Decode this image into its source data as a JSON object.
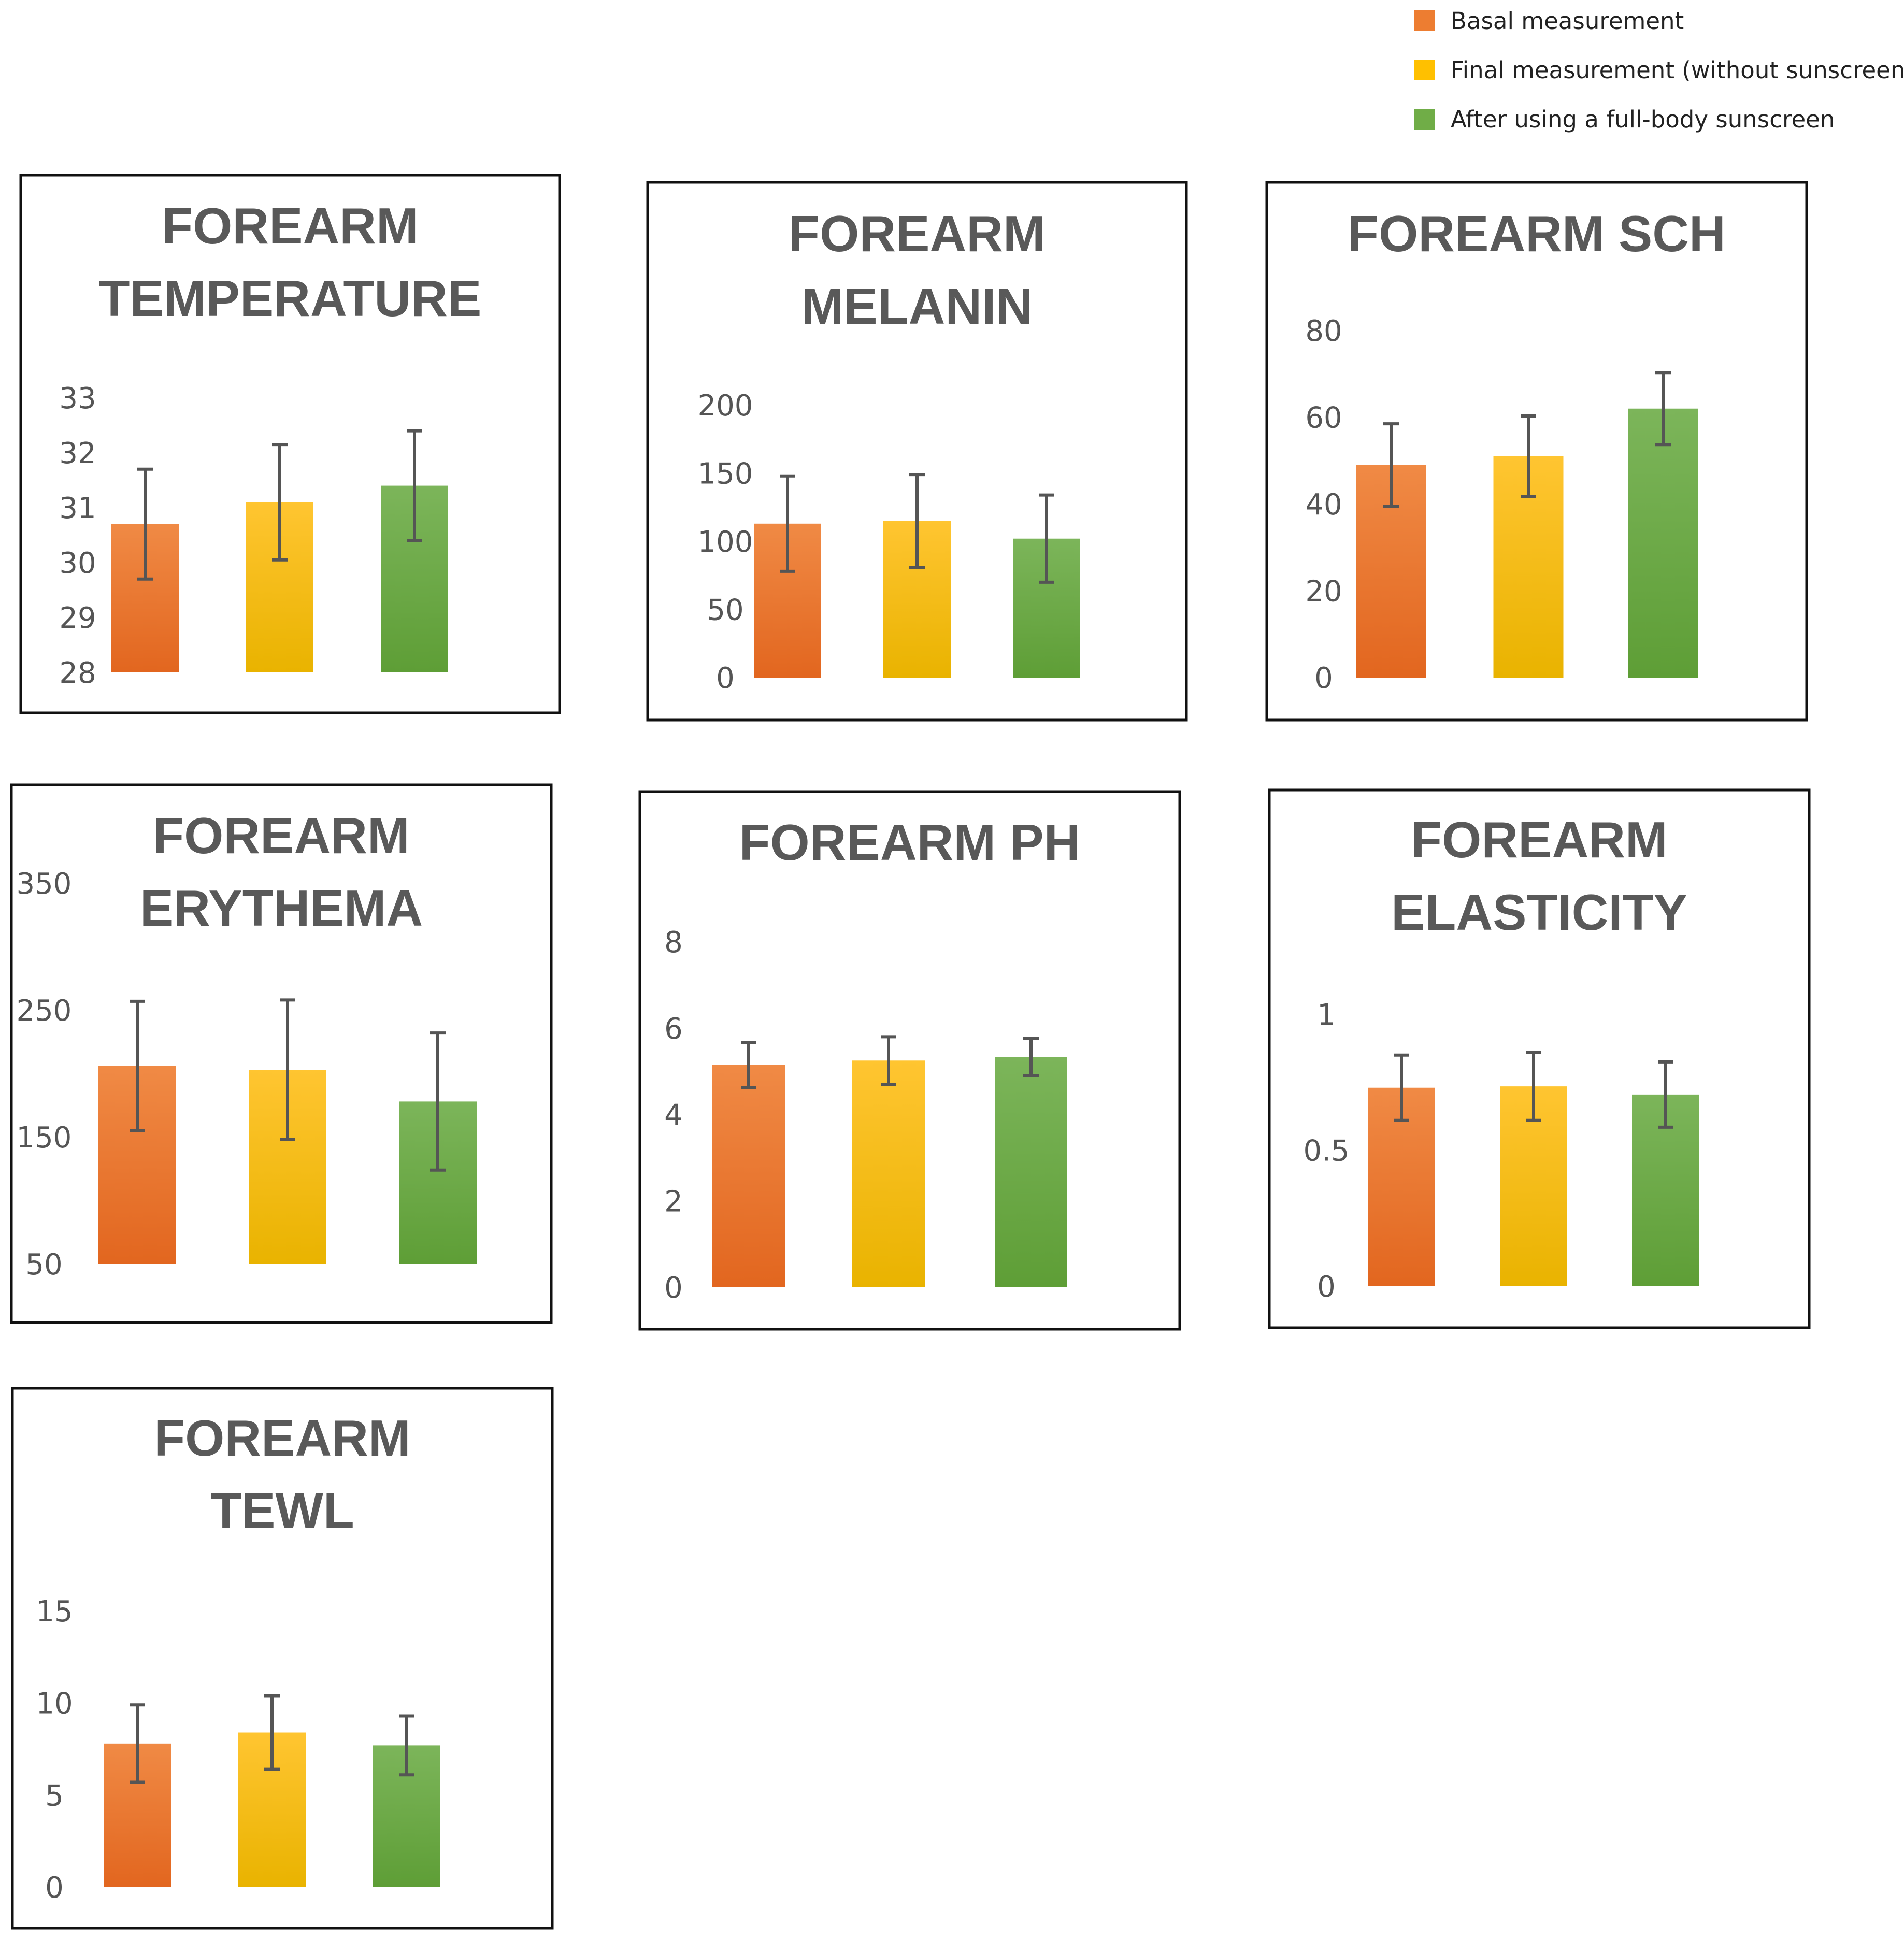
{
  "legend": {
    "items": [
      {
        "label": "Basal measurement",
        "color": "#ED7D31"
      },
      {
        "label": "Final measurement (without sunscreen)",
        "color": "#FFC000"
      },
      {
        "label": "After using a full-body sunscreen",
        "color": "#70AD47"
      }
    ]
  },
  "colors": {
    "series": [
      {
        "top": "#F08A45",
        "bottom": "#E2661F"
      },
      {
        "top": "#FFC531",
        "bottom": "#E9B300"
      },
      {
        "top": "#7CB55A",
        "bottom": "#5E9E36"
      }
    ],
    "frame": "#111111",
    "title": "#595959",
    "tick": "#555555",
    "errorbar": "#555555"
  },
  "chart_data": [
    {
      "type": "bar",
      "title": [
        "FOREARM",
        "TEMPERATURE"
      ],
      "categories": [
        "Basal measurement",
        "Final measurement (without sunscreen)",
        "After using a full-body sunscreen"
      ],
      "values": [
        30.7,
        31.1,
        31.4
      ],
      "errors": [
        1.0,
        1.05,
        1.0
      ],
      "yticks": [
        "28",
        "29",
        "30",
        "31",
        "32",
        "33"
      ],
      "ylim": [
        28,
        33
      ]
    },
    {
      "type": "bar",
      "title": [
        "FOREARM",
        "MELANIN"
      ],
      "categories": [
        "Basal measurement",
        "Final measurement (without sunscreen)",
        "After using a full-body sunscreen"
      ],
      "values": [
        113,
        115,
        102
      ],
      "errors": [
        35,
        34,
        32
      ],
      "yticks": [
        "0",
        "50",
        "100",
        "150",
        "200"
      ],
      "ylim": [
        0,
        200
      ]
    },
    {
      "type": "bar",
      "title": [
        "FOREARM SCH"
      ],
      "categories": [
        "Basal measurement",
        "Final measurement (without sunscreen)",
        "After using a full-body sunscreen"
      ],
      "values": [
        49,
        51,
        62
      ],
      "errors": [
        9.5,
        9.3,
        8.3
      ],
      "yticks": [
        "0",
        "20",
        "40",
        "60",
        "80"
      ],
      "ylim": [
        0,
        80
      ]
    },
    {
      "type": "bar",
      "title": [
        "FOREARM",
        "ERYTHEMA"
      ],
      "categories": [
        "Basal measurement",
        "Final measurement (without sunscreen)",
        "After using a full-body sunscreen"
      ],
      "values": [
        206,
        203,
        178
      ],
      "errors": [
        51,
        55,
        54
      ],
      "yticks": [
        "50",
        "150",
        "250",
        "350"
      ],
      "ylim": [
        50,
        350
      ]
    },
    {
      "type": "bar",
      "title": [
        "FOREARM PH"
      ],
      "categories": [
        "Basal measurement",
        "Final measurement (without sunscreen)",
        "After using a full-body sunscreen"
      ],
      "values": [
        5.15,
        5.25,
        5.33
      ],
      "errors": [
        0.52,
        0.55,
        0.43
      ],
      "yticks": [
        "0",
        "2",
        "4",
        "6",
        "8"
      ],
      "ylim": [
        0,
        8
      ]
    },
    {
      "type": "bar",
      "title": [
        "FOREARM",
        "ELASTICITY"
      ],
      "categories": [
        "Basal measurement",
        "Final measurement (without sunscreen)",
        "After using a full-body sunscreen"
      ],
      "values": [
        0.73,
        0.735,
        0.705
      ],
      "errors": [
        0.12,
        0.125,
        0.12
      ],
      "yticks": [
        "0",
        "0.5",
        "1"
      ],
      "ylim": [
        0,
        1
      ]
    },
    {
      "type": "bar",
      "title": [
        "FOREARM",
        "TEWL"
      ],
      "categories": [
        "Basal measurement",
        "Final measurement (without sunscreen)",
        "After using a full-body sunscreen"
      ],
      "values": [
        7.8,
        8.4,
        7.7
      ],
      "errors": [
        2.1,
        2.0,
        1.6
      ],
      "yticks": [
        "0",
        "5",
        "10",
        "15"
      ],
      "ylim": [
        0,
        15
      ]
    }
  ]
}
